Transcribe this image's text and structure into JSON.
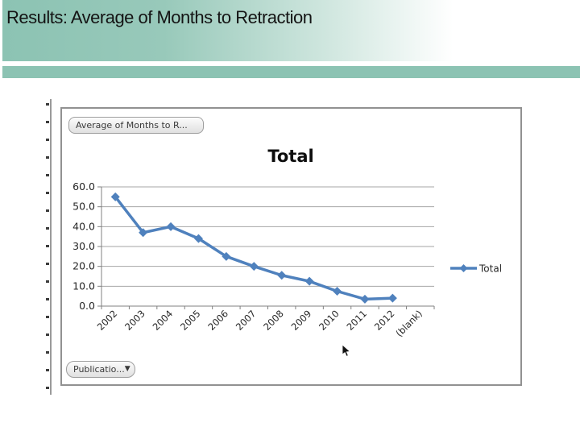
{
  "slide": {
    "title": "Results: Average of Months to Retraction"
  },
  "pivot_chart": {
    "value_field_button": "Average of Months to R...",
    "axis_field_button": "Publicatio..."
  },
  "icons": {
    "dropdown_arrow": "▼"
  },
  "colors": {
    "header_teal": "#8cc3b3",
    "chart_border": "#919191",
    "series_blue": "#4f81bd"
  },
  "chart_data": {
    "type": "line",
    "title": "Total",
    "categories": [
      "2002",
      "2003",
      "2004",
      "2005",
      "2006",
      "2007",
      "2008",
      "2009",
      "2010",
      "2011",
      "2012",
      "(blank)"
    ],
    "series": [
      {
        "name": "Total",
        "values": [
          55,
          37,
          40,
          34,
          25,
          20,
          15.5,
          12.5,
          7.5,
          3.5,
          4,
          null
        ]
      }
    ],
    "ylim": [
      0,
      60
    ],
    "ytick_step": 10,
    "ytick_labels": [
      "0.0",
      "10.0",
      "20.0",
      "30.0",
      "40.0",
      "50.0",
      "60.0"
    ],
    "xlabel": "",
    "ylabel": "",
    "grid": true,
    "legend_position": "right",
    "line_color": "#4f81bd",
    "axis_color": "#808080",
    "gridline_color": "#a6a6a6",
    "label_color": "#262626"
  }
}
